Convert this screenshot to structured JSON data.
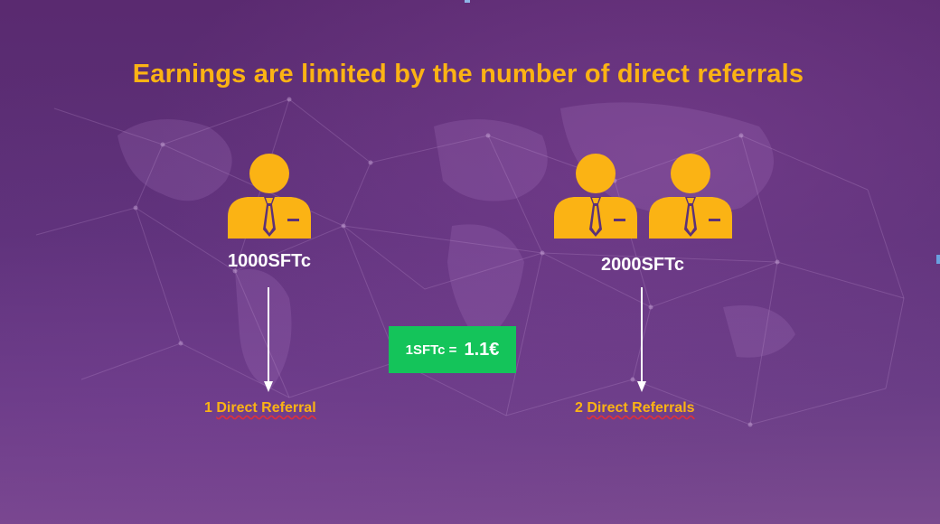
{
  "title": "Earnings are limited by the number of direct referrals",
  "left": {
    "amount": "1000SFTc",
    "referral_number": "1",
    "referral_text": "Direct Referral"
  },
  "right": {
    "amount": "2000SFTc",
    "referral_number": "2",
    "referral_text": "Direct Referrals"
  },
  "rate": {
    "lhs": "1SFTc =",
    "rhs": "1.1€"
  },
  "icons": [
    "businessman-icon",
    "down-arrow-icon"
  ],
  "colors": {
    "accent": "#fbb314",
    "rate_box": "#14c45a",
    "background": "#5c3178",
    "text": "#ffffff"
  }
}
